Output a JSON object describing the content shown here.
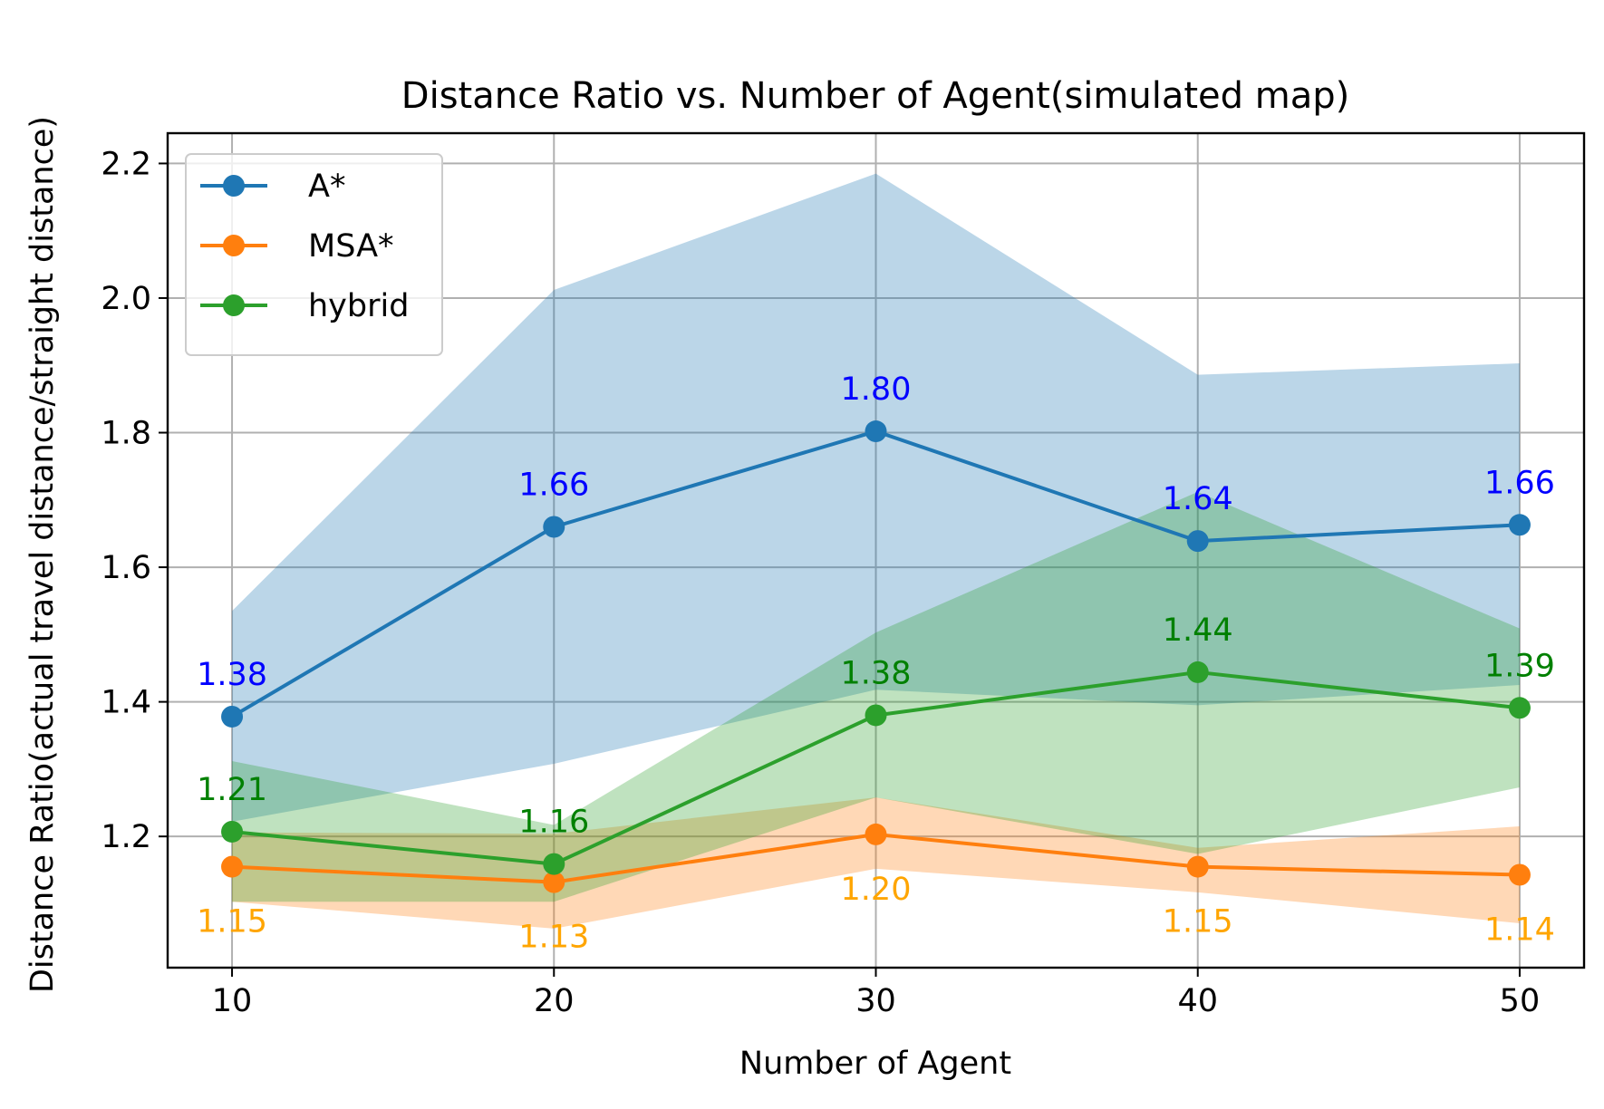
{
  "chart_data": {
    "type": "line",
    "title": "Distance Ratio vs. Number of Agent(simulated map)",
    "xlabel": "Number of  Agent",
    "ylabel": "Distance Ratio(actual travel distance/straight distance)",
    "x": [
      10,
      20,
      30,
      40,
      50
    ],
    "xlim": [
      8,
      52
    ],
    "ylim": [
      1.005,
      2.245
    ],
    "xticks": [
      "10",
      "20",
      "30",
      "40",
      "50"
    ],
    "yticks": [
      "1.2",
      "1.4",
      "1.6",
      "1.8",
      "2.0",
      "2.2"
    ],
    "grid": true,
    "legend_position": "upper-left",
    "series": [
      {
        "name": "A*",
        "color": "#1f77b4",
        "label_color": "#0000ff",
        "label_position": "above",
        "values": [
          1.378,
          1.66,
          1.802,
          1.639,
          1.663
        ],
        "labels": [
          "1.38",
          "1.66",
          "1.80",
          "1.64",
          "1.66"
        ],
        "band_lower": [
          1.222,
          1.308,
          1.418,
          1.395,
          1.425
        ],
        "band_upper": [
          1.535,
          2.012,
          2.185,
          1.886,
          1.903
        ]
      },
      {
        "name": "MSA*",
        "color": "#ff7f0e",
        "label_color": "#ffa500",
        "label_position": "below",
        "values": [
          1.155,
          1.132,
          1.203,
          1.155,
          1.143
        ],
        "labels": [
          "1.15",
          "1.13",
          "1.20",
          "1.15",
          "1.14"
        ],
        "band_lower": [
          1.103,
          1.063,
          1.152,
          1.117,
          1.071
        ],
        "band_upper": [
          1.206,
          1.204,
          1.258,
          1.183,
          1.215
        ]
      },
      {
        "name": "hybrid",
        "color": "#2ca02c",
        "label_color": "#008000",
        "label_position": "above",
        "values": [
          1.207,
          1.159,
          1.38,
          1.444,
          1.391
        ],
        "labels": [
          "1.21",
          "1.16",
          "1.38",
          "1.44",
          "1.39"
        ],
        "band_lower": [
          1.103,
          1.103,
          1.258,
          1.174,
          1.273
        ],
        "band_upper": [
          1.312,
          1.217,
          1.503,
          1.712,
          1.509
        ]
      }
    ]
  }
}
